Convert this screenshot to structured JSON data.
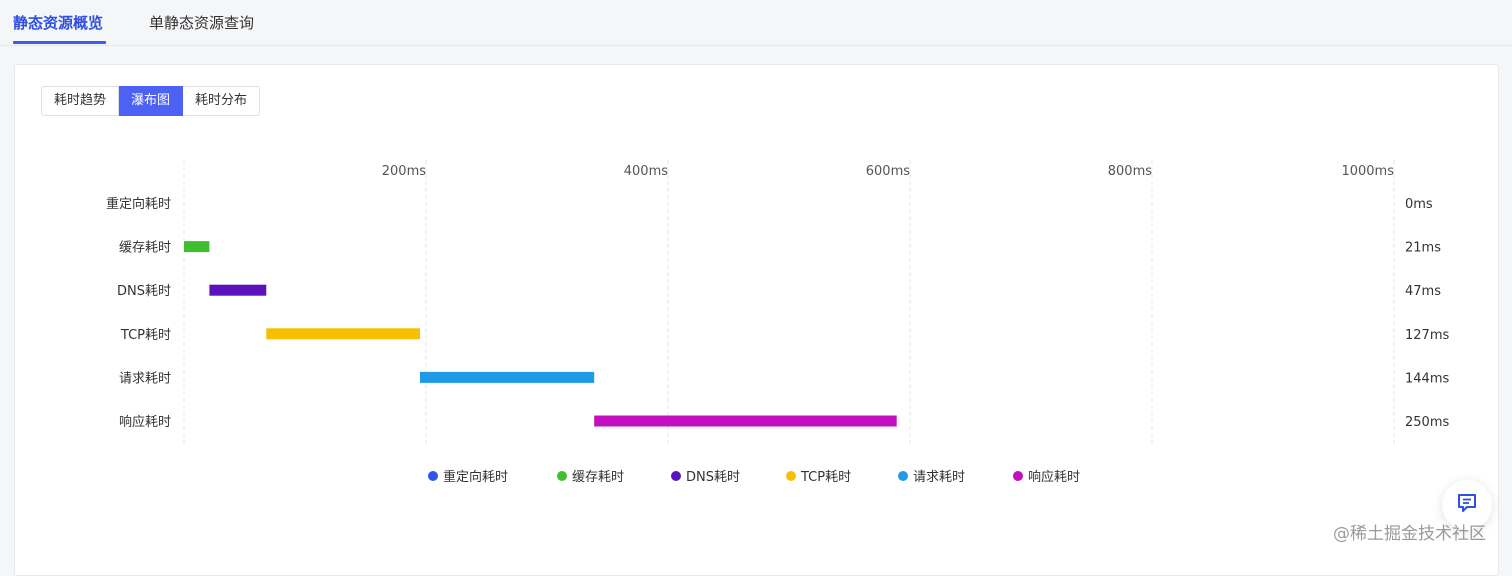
{
  "top_tabs": [
    {
      "label": "静态资源概览",
      "active": true
    },
    {
      "label": "单静态资源查询",
      "active": false
    }
  ],
  "view_toggle": [
    {
      "label": "耗时趋势",
      "active": false
    },
    {
      "label": "瀑布图",
      "active": true
    },
    {
      "label": "耗时分布",
      "active": false
    }
  ],
  "chart_data": {
    "type": "bar",
    "subtype": "waterfall",
    "orientation": "horizontal",
    "xlim": [
      0,
      1000
    ],
    "x_ticks": [
      0,
      200,
      400,
      600,
      800,
      1000
    ],
    "x_tick_labels": [
      "",
      "200ms",
      "400ms",
      "600ms",
      "800ms",
      "1000ms"
    ],
    "categories": [
      "重定向耗时",
      "缓存耗时",
      "DNS耗时",
      "TCP耗时",
      "请求耗时",
      "响应耗时"
    ],
    "starts": [
      0,
      0,
      21,
      68,
      195,
      339
    ],
    "durations": [
      0,
      21,
      47,
      127,
      144,
      250
    ],
    "duration_labels": [
      "0ms",
      "21ms",
      "47ms",
      "127ms",
      "144ms",
      "250ms"
    ],
    "colors": [
      "#2f54eb",
      "#3fbf2f",
      "#5b12bd",
      "#f6c000",
      "#1e9be8",
      "#c30fbf"
    ],
    "grid": "vertical-dashed",
    "legend_position": "bottom"
  },
  "watermark": "@稀土掘金技术社区",
  "feedback_icon": "message-square-icon"
}
